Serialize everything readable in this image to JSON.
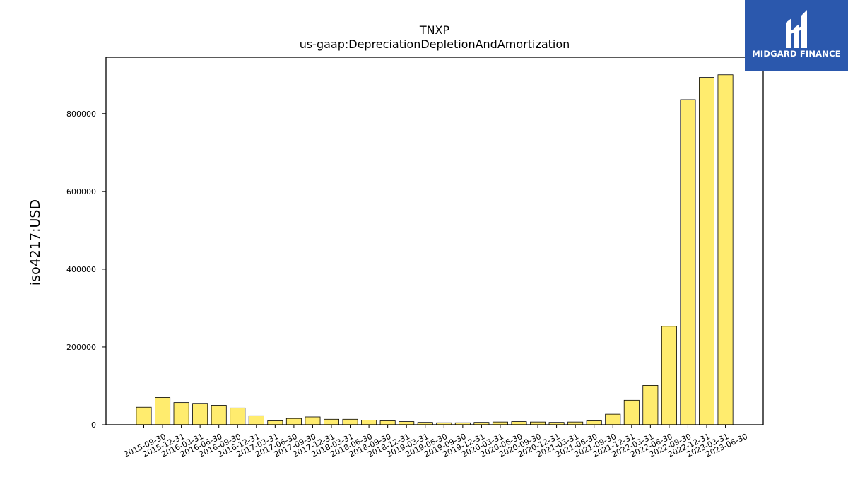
{
  "chart_data": {
    "type": "bar",
    "title": "TNXP",
    "subtitle": "us-gaap:DepreciationDepletionAndAmortization",
    "xlabel": "",
    "ylabel": "iso4217:USD",
    "ylim": [
      0,
      945000
    ],
    "yticks": [
      0,
      200000,
      400000,
      600000,
      800000
    ],
    "grid": false,
    "bar_color": "#ffec6e",
    "bar_edge_color": "#000000",
    "categories": [
      "2015-09-30",
      "2015-12-31",
      "2016-03-31",
      "2016-06-30",
      "2016-09-30",
      "2016-12-31",
      "2017-03-31",
      "2017-06-30",
      "2017-09-30",
      "2017-12-31",
      "2018-03-31",
      "2018-06-30",
      "2018-09-30",
      "2018-12-31",
      "2019-03-31",
      "2019-06-30",
      "2019-09-30",
      "2019-12-31",
      "2020-03-31",
      "2020-06-30",
      "2020-09-30",
      "2020-12-31",
      "2021-03-31",
      "2021-06-30",
      "2021-09-30",
      "2021-12-31",
      "2022-03-31",
      "2022-06-30",
      "2022-09-30",
      "2022-12-31",
      "2023-03-31",
      "2023-06-30"
    ],
    "values": [
      45000,
      70000,
      57000,
      55000,
      50000,
      43000,
      23000,
      10000,
      16000,
      20000,
      14000,
      14000,
      12000,
      10000,
      8000,
      6000,
      5000,
      5000,
      6000,
      7000,
      8000,
      7000,
      6000,
      7000,
      10000,
      27000,
      63000,
      101000,
      253000,
      836000,
      893000,
      900000
    ]
  },
  "logo": {
    "text": "MIDGARD FINANCE",
    "color": "#2b58ad"
  }
}
